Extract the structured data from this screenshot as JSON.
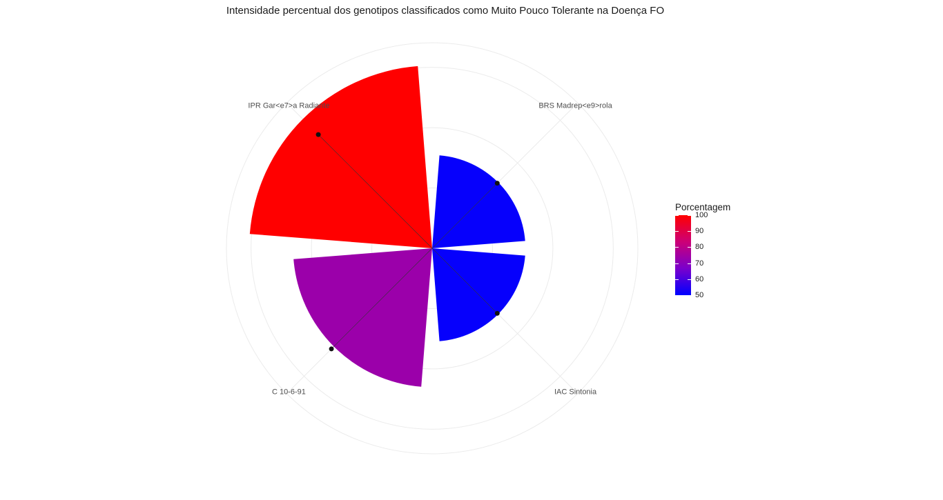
{
  "chart_data": {
    "type": "bar",
    "coord": "polar",
    "title": "Intensidade percentual dos genotipos classificados como Muito Pouco Tolerante na Doença FO",
    "categories": [
      "BRS Madrep<e9>rola",
      "IAC Sintonia",
      "C 10-6-91",
      "IPR Gar<e7>a Radiante"
    ],
    "values": [
      51,
      51,
      76,
      100
    ],
    "point_values": [
      57.2,
      57.2,
      88.5,
      100
    ],
    "rlim": [
      0,
      100
    ],
    "grid": true,
    "legend": {
      "title": "Porcentagem",
      "position": "right",
      "ticks": [
        "100",
        "90",
        "80",
        "70",
        "60",
        "50"
      ],
      "range": [
        50,
        100
      ]
    },
    "colors": {
      "low": "#0000ff",
      "high": "#ff0000"
    }
  }
}
